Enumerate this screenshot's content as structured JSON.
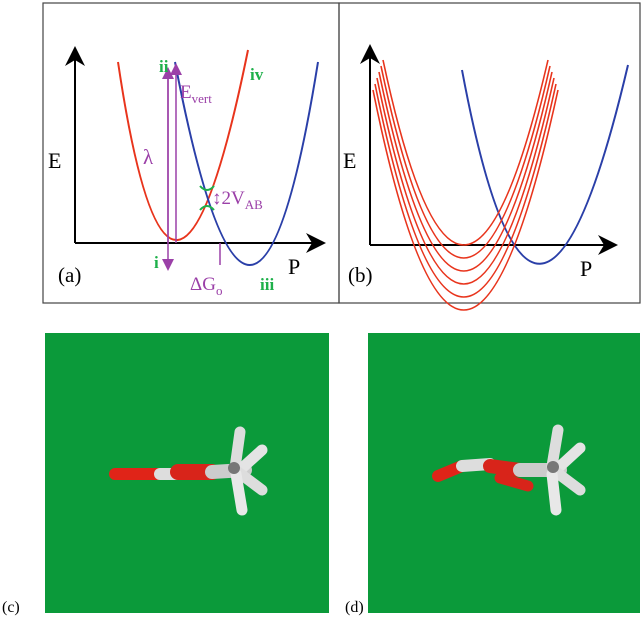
{
  "panel_a": {
    "label": "(a)",
    "y_axis": "E",
    "x_axis": "P",
    "point_1": "i",
    "point_2": "ii",
    "point_3": "iii",
    "point_4": "iv",
    "vertical_energy": {
      "main": "E",
      "sub": "vert"
    },
    "reorganization": "λ",
    "coupling": {
      "main": "↕2V",
      "sub": "AB"
    },
    "free_energy": {
      "main": "ΔG",
      "sub": "o"
    }
  },
  "panel_b": {
    "label": "(b)",
    "y_axis": "E",
    "x_axis": "P"
  },
  "panel_c": {
    "label": "(c)"
  },
  "panel_d": {
    "label": "(d)"
  }
}
